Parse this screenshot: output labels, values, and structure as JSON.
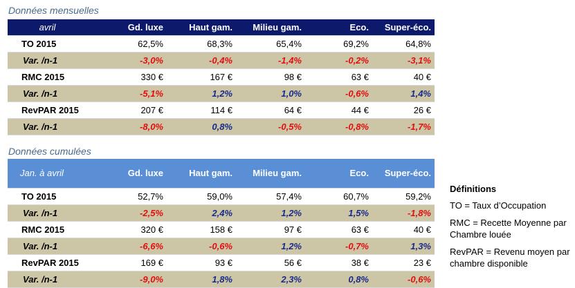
{
  "monthly": {
    "title": "Données mensuelles",
    "header": [
      "avril",
      "Gd. luxe",
      "Haut gam.",
      "Milieu gam.",
      "Eco.",
      "Super-éco."
    ],
    "rows": [
      {
        "label": "TO 2015",
        "type": "value",
        "cells": [
          {
            "v": "62,5%"
          },
          {
            "v": "68,3%"
          },
          {
            "v": "65,4%"
          },
          {
            "v": "69,2%"
          },
          {
            "v": "64,8%"
          }
        ]
      },
      {
        "label": "Var. /n-1",
        "type": "var",
        "cells": [
          {
            "v": "-3,0%",
            "s": "neg"
          },
          {
            "v": "-0,4%",
            "s": "neg"
          },
          {
            "v": "-1,4%",
            "s": "neg"
          },
          {
            "v": "-0,2%",
            "s": "neg"
          },
          {
            "v": "-3,1%",
            "s": "neg"
          }
        ]
      },
      {
        "label": "RMC 2015",
        "type": "value",
        "cells": [
          {
            "v": "330 €"
          },
          {
            "v": "167 €"
          },
          {
            "v": "98 €"
          },
          {
            "v": "63 €"
          },
          {
            "v": "40 €"
          }
        ]
      },
      {
        "label": "Var. /n-1",
        "type": "var",
        "cells": [
          {
            "v": "-5,1%",
            "s": "neg"
          },
          {
            "v": "1,2%",
            "s": "pos"
          },
          {
            "v": "1,0%",
            "s": "pos"
          },
          {
            "v": "-0,6%",
            "s": "neg"
          },
          {
            "v": "1,4%",
            "s": "pos"
          }
        ]
      },
      {
        "label": "RevPAR 2015",
        "type": "value",
        "cells": [
          {
            "v": "207 €"
          },
          {
            "v": "114 €"
          },
          {
            "v": "64 €"
          },
          {
            "v": "44 €"
          },
          {
            "v": "26 €"
          }
        ]
      },
      {
        "label": "Var. /n-1",
        "type": "var",
        "cells": [
          {
            "v": "-8,0%",
            "s": "neg"
          },
          {
            "v": "0,8%",
            "s": "pos"
          },
          {
            "v": "-0,5%",
            "s": "neg"
          },
          {
            "v": "-0,8%",
            "s": "neg"
          },
          {
            "v": "-1,7%",
            "s": "neg"
          }
        ]
      }
    ]
  },
  "cumulative": {
    "title": "Données cumulées",
    "header": [
      "Jan. à avril",
      "Gd. luxe",
      "Haut gam.",
      "Milieu gam.",
      "Eco.",
      "Super-éco."
    ],
    "rows": [
      {
        "label": "TO 2015",
        "type": "value",
        "cells": [
          {
            "v": "52,7%"
          },
          {
            "v": "59,0%"
          },
          {
            "v": "57,4%"
          },
          {
            "v": "60,7%"
          },
          {
            "v": "59,2%"
          }
        ]
      },
      {
        "label": "Var. /n-1",
        "type": "var",
        "cells": [
          {
            "v": "-2,5%",
            "s": "neg"
          },
          {
            "v": "2,4%",
            "s": "pos"
          },
          {
            "v": "1,2%",
            "s": "pos"
          },
          {
            "v": "1,5%",
            "s": "pos"
          },
          {
            "v": "-1,8%",
            "s": "neg"
          }
        ]
      },
      {
        "label": "RMC 2015",
        "type": "value",
        "cells": [
          {
            "v": "320 €"
          },
          {
            "v": "158 €"
          },
          {
            "v": "97 €"
          },
          {
            "v": "63 €"
          },
          {
            "v": "40 €"
          }
        ]
      },
      {
        "label": "Var. /n-1",
        "type": "var",
        "cells": [
          {
            "v": "-6,6%",
            "s": "neg"
          },
          {
            "v": "-0,6%",
            "s": "neg"
          },
          {
            "v": "1,2%",
            "s": "pos"
          },
          {
            "v": "-0,7%",
            "s": "neg"
          },
          {
            "v": "1,3%",
            "s": "pos"
          }
        ]
      },
      {
        "label": "RevPAR 2015",
        "type": "value",
        "cells": [
          {
            "v": "169 €"
          },
          {
            "v": "93 €"
          },
          {
            "v": "56 €"
          },
          {
            "v": "38 €"
          },
          {
            "v": "23 €"
          }
        ]
      },
      {
        "label": "Var. /n-1",
        "type": "var",
        "cells": [
          {
            "v": "-9,0%",
            "s": "neg"
          },
          {
            "v": "1,8%",
            "s": "pos"
          },
          {
            "v": "2,3%",
            "s": "pos"
          },
          {
            "v": "0,8%",
            "s": "pos"
          },
          {
            "v": "-0,6%",
            "s": "neg"
          }
        ]
      }
    ]
  },
  "definitions": {
    "title": "Définitions",
    "items": [
      "TO = Taux d’Occupation",
      "RMC = Recette Moyenne par Chambre louée",
      "RevPAR = Revenu moyen par chambre disponible"
    ]
  },
  "colors": {
    "monthly_header": "#0d1a6b",
    "cumulative_header": "#5a8fd6",
    "var_row": "#cdc6a6",
    "negative": "#e01010",
    "positive": "#1a2a8a"
  }
}
